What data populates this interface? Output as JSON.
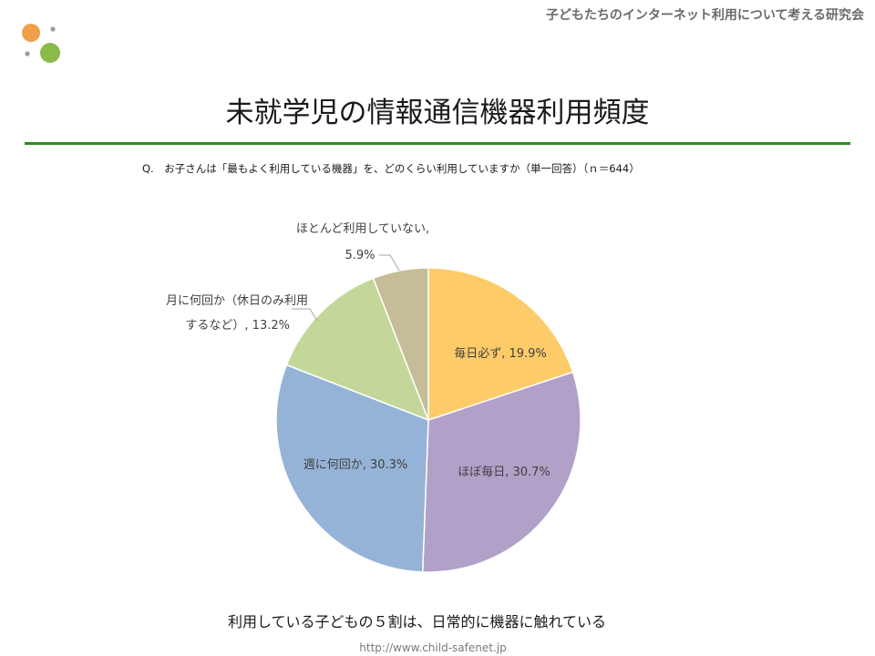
{
  "header": {
    "org_name": "子どもたちのインターネット利用について考える研究会",
    "logo": {
      "name": "dots-logo-icon",
      "colors": [
        "#f0a048",
        "#8cba4a",
        "#9a9a9a"
      ]
    }
  },
  "page": {
    "title": "未就学児の情報通信機器利用頻度",
    "rule_color": "#2e8b24",
    "question": "Q.　お子さんは「最もよく利用している機器」を、どのくらい利用していますか（単一回答）（ｎ＝644）",
    "conclusion": "利用している子どもの５割は、日常的に機器に触れている",
    "footer_url": "http://www.child-safenet.jp"
  },
  "chart_data": {
    "type": "pie",
    "start": "12 o'clock, clockwise",
    "slices": [
      {
        "label": "毎日必ず, 19.9%",
        "category": "毎日必ず",
        "value": 19.9,
        "color": "#fdcb68",
        "label_position": "inside"
      },
      {
        "label": "ほぼ毎日, 30.7%",
        "category": "ほぼ毎日",
        "value": 30.7,
        "color": "#b1a0c7",
        "label_position": "inside"
      },
      {
        "label": "週に何回か, 30.3%",
        "category": "週に何回か",
        "value": 30.3,
        "color": "#95b3d7",
        "label_position": "inside"
      },
      {
        "label_lines": [
          "月に何回か（休日のみ利用",
          "するなど）, 13.2%"
        ],
        "category": "月に何回か（休日のみ利用するなど）",
        "value": 13.2,
        "color": "#c4d79b",
        "label_position": "outside"
      },
      {
        "label_lines": [
          "ほとんど利用していない,",
          "5.9%"
        ],
        "category": "ほとんど利用していない",
        "value": 5.9,
        "color": "#c4bd97",
        "label_position": "outside"
      }
    ]
  }
}
